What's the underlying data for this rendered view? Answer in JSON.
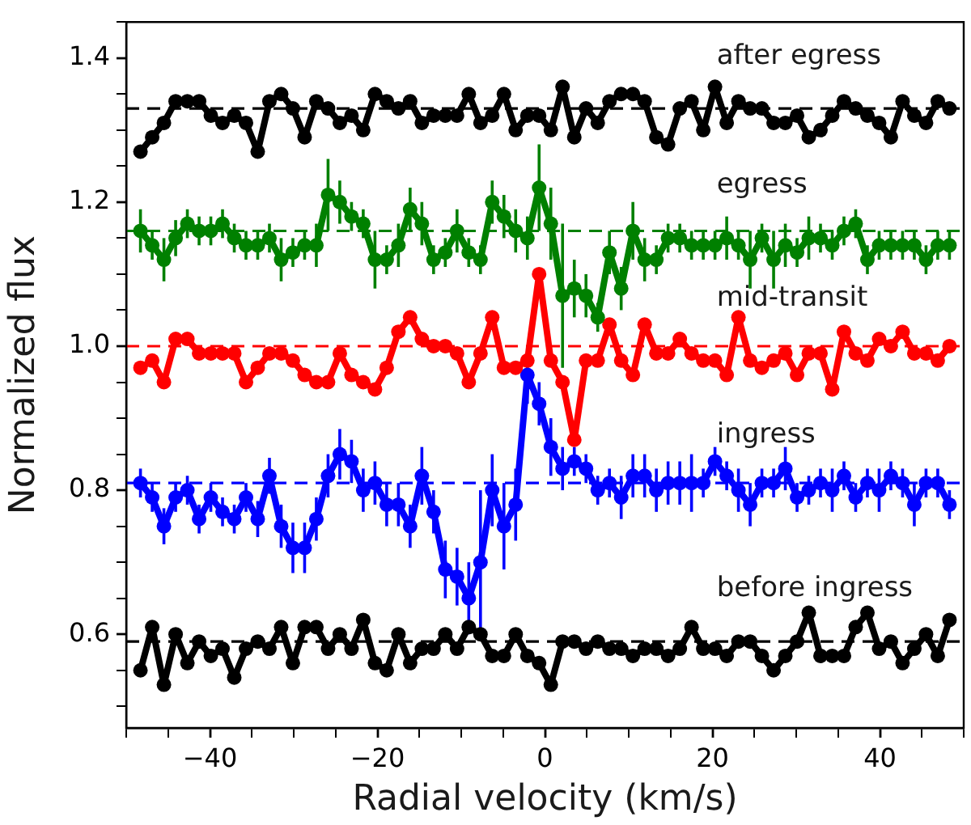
{
  "chart_data": {
    "type": "line",
    "xlabel": "Radial velocity (km/s)",
    "ylabel": "Normalized flux",
    "marker": "circle",
    "line_style": "solid",
    "grid": false,
    "legend": false,
    "x": [
      -48.3,
      -46.9,
      -45.5,
      -44.1,
      -42.7,
      -41.3,
      -39.9,
      -38.5,
      -37.1,
      -35.7,
      -34.3,
      -32.9,
      -31.5,
      -30.1,
      -28.7,
      -27.3,
      -25.9,
      -24.5,
      -23.1,
      -21.7,
      -20.3,
      -18.9,
      -17.5,
      -16.1,
      -14.7,
      -13.3,
      -11.9,
      -10.5,
      -9.1,
      -7.7,
      -6.3,
      -4.9,
      -3.5,
      -2.1,
      -0.7,
      0.7,
      2.1,
      3.5,
      4.9,
      6.3,
      7.7,
      9.1,
      10.5,
      11.9,
      13.3,
      14.7,
      16.1,
      17.5,
      18.9,
      20.3,
      21.7,
      23.1,
      24.5,
      25.9,
      27.3,
      28.7,
      30.1,
      31.5,
      32.9,
      34.3,
      35.7,
      37.1,
      38.5,
      39.9,
      41.3,
      42.7,
      44.1,
      45.5,
      46.9,
      48.3
    ],
    "series": [
      {
        "name": "after egress",
        "color": "#000000",
        "values": [
          1.27,
          1.29,
          1.31,
          1.34,
          1.34,
          1.34,
          1.32,
          1.31,
          1.32,
          1.31,
          1.27,
          1.34,
          1.35,
          1.33,
          1.29,
          1.34,
          1.33,
          1.31,
          1.32,
          1.3,
          1.35,
          1.34,
          1.33,
          1.34,
          1.31,
          1.32,
          1.32,
          1.32,
          1.35,
          1.31,
          1.32,
          1.35,
          1.3,
          1.32,
          1.32,
          1.3,
          1.36,
          1.29,
          1.33,
          1.31,
          1.34,
          1.35,
          1.35,
          1.34,
          1.29,
          1.28,
          1.33,
          1.34,
          1.3,
          1.36,
          1.31,
          1.34,
          1.33,
          1.33,
          1.31,
          1.31,
          1.32,
          1.29,
          1.3,
          1.32,
          1.34,
          1.33,
          1.32,
          1.31,
          1.29,
          1.34,
          1.32,
          1.31,
          1.34,
          1.33
        ]
      },
      {
        "name": "egress",
        "color": "#008000",
        "values": [
          1.16,
          1.14,
          1.12,
          1.15,
          1.17,
          1.16,
          1.16,
          1.17,
          1.15,
          1.14,
          1.14,
          1.15,
          1.12,
          1.13,
          1.14,
          1.14,
          1.21,
          1.2,
          1.18,
          1.17,
          1.12,
          1.12,
          1.14,
          1.19,
          1.17,
          1.12,
          1.13,
          1.16,
          1.13,
          1.12,
          1.2,
          1.18,
          1.16,
          1.15,
          1.22,
          1.17,
          1.07,
          1.08,
          1.07,
          1.04,
          1.13,
          1.08,
          1.16,
          1.12,
          1.12,
          1.15,
          1.15,
          1.14,
          1.14,
          1.14,
          1.15,
          1.14,
          1.12,
          1.15,
          1.12,
          1.14,
          1.13,
          1.15,
          1.15,
          1.14,
          1.16,
          1.17,
          1.12,
          1.14,
          1.14,
          1.14,
          1.14,
          1.12,
          1.14,
          1.14
        ],
        "errors": [
          0.03,
          0.02,
          0.03,
          0.025,
          0.02,
          0.02,
          0.02,
          0.02,
          0.02,
          0.02,
          0.02,
          0.02,
          0.03,
          0.02,
          0.02,
          0.03,
          0.05,
          0.03,
          0.02,
          0.02,
          0.04,
          0.02,
          0.03,
          0.03,
          0.03,
          0.02,
          0.02,
          0.03,
          0.02,
          0.02,
          0.03,
          0.03,
          0.03,
          0.03,
          0.06,
          0.05,
          0.1,
          0.04,
          0.03,
          0.02,
          0.03,
          0.03,
          0.04,
          0.03,
          0.02,
          0.02,
          0.02,
          0.02,
          0.02,
          0.02,
          0.03,
          0.02,
          0.04,
          0.02,
          0.04,
          0.03,
          0.02,
          0.03,
          0.02,
          0.02,
          0.02,
          0.02,
          0.02,
          0.02,
          0.02,
          0.02,
          0.02,
          0.02,
          0.02,
          0.02
        ]
      },
      {
        "name": "mid-transit",
        "color": "#ff0000",
        "values": [
          0.97,
          0.98,
          0.95,
          1.01,
          1.01,
          0.99,
          0.99,
          0.99,
          0.99,
          0.95,
          0.97,
          0.99,
          0.99,
          0.98,
          0.96,
          0.95,
          0.95,
          0.99,
          0.96,
          0.95,
          0.94,
          0.97,
          1.02,
          1.04,
          1.01,
          1.0,
          1.0,
          0.99,
          0.95,
          0.99,
          1.04,
          0.97,
          0.97,
          0.98,
          1.1,
          0.98,
          0.95,
          0.87,
          0.98,
          0.98,
          1.03,
          0.98,
          0.96,
          1.03,
          0.99,
          0.99,
          1.01,
          0.99,
          0.98,
          0.98,
          0.96,
          1.04,
          0.98,
          0.97,
          0.98,
          0.99,
          0.96,
          0.99,
          0.99,
          0.94,
          1.02,
          0.99,
          0.98,
          1.01,
          1.0,
          1.02,
          0.99,
          0.99,
          0.98,
          1.0
        ]
      },
      {
        "name": "ingress",
        "color": "#0000ff",
        "values": [
          0.81,
          0.79,
          0.75,
          0.79,
          0.8,
          0.76,
          0.79,
          0.77,
          0.76,
          0.79,
          0.76,
          0.82,
          0.75,
          0.72,
          0.72,
          0.76,
          0.82,
          0.85,
          0.84,
          0.8,
          0.81,
          0.78,
          0.78,
          0.75,
          0.82,
          0.77,
          0.69,
          0.68,
          0.65,
          0.7,
          0.8,
          0.75,
          0.78,
          0.96,
          0.92,
          0.86,
          0.83,
          0.84,
          0.83,
          0.8,
          0.81,
          0.79,
          0.82,
          0.82,
          0.8,
          0.81,
          0.81,
          0.81,
          0.81,
          0.84,
          0.82,
          0.8,
          0.78,
          0.81,
          0.81,
          0.83,
          0.79,
          0.8,
          0.81,
          0.8,
          0.82,
          0.79,
          0.81,
          0.8,
          0.82,
          0.81,
          0.78,
          0.81,
          0.81,
          0.78
        ],
        "errors": [
          0.02,
          0.02,
          0.025,
          0.02,
          0.02,
          0.02,
          0.02,
          0.02,
          0.02,
          0.02,
          0.025,
          0.025,
          0.03,
          0.035,
          0.035,
          0.03,
          0.03,
          0.035,
          0.03,
          0.03,
          0.03,
          0.03,
          0.03,
          0.03,
          0.04,
          0.03,
          0.04,
          0.04,
          0.05,
          0.1,
          0.05,
          0.06,
          0.05,
          0.04,
          0.03,
          0.04,
          0.03,
          0.02,
          0.02,
          0.02,
          0.02,
          0.03,
          0.03,
          0.03,
          0.03,
          0.03,
          0.03,
          0.04,
          0.02,
          0.02,
          0.02,
          0.03,
          0.03,
          0.02,
          0.02,
          0.03,
          0.02,
          0.02,
          0.02,
          0.03,
          0.02,
          0.02,
          0.02,
          0.03,
          0.02,
          0.02,
          0.03,
          0.02,
          0.02,
          0.02
        ]
      },
      {
        "name": "before ingress",
        "color": "#000000",
        "values": [
          0.55,
          0.61,
          0.53,
          0.6,
          0.56,
          0.59,
          0.57,
          0.58,
          0.54,
          0.58,
          0.59,
          0.58,
          0.61,
          0.56,
          0.61,
          0.61,
          0.58,
          0.6,
          0.58,
          0.62,
          0.56,
          0.55,
          0.6,
          0.56,
          0.58,
          0.58,
          0.6,
          0.58,
          0.61,
          0.6,
          0.57,
          0.57,
          0.6,
          0.57,
          0.56,
          0.53,
          0.59,
          0.59,
          0.58,
          0.59,
          0.58,
          0.58,
          0.57,
          0.58,
          0.58,
          0.57,
          0.58,
          0.61,
          0.58,
          0.58,
          0.57,
          0.59,
          0.59,
          0.57,
          0.55,
          0.57,
          0.59,
          0.63,
          0.57,
          0.57,
          0.57,
          0.61,
          0.63,
          0.58,
          0.59,
          0.56,
          0.58,
          0.6,
          0.57,
          0.62
        ]
      }
    ],
    "ref_lines": [
      {
        "axis": "y",
        "value": 1.33,
        "color": "#000000",
        "line_style": "dashed"
      },
      {
        "axis": "y",
        "value": 1.16,
        "color": "#008000",
        "line_style": "dashed"
      },
      {
        "axis": "y",
        "value": 1.0,
        "color": "#ff0000",
        "line_style": "dashed"
      },
      {
        "axis": "y",
        "value": 0.81,
        "color": "#0000ff",
        "line_style": "dashed"
      },
      {
        "axis": "y",
        "value": 0.59,
        "color": "#000000",
        "line_style": "dashed"
      }
    ],
    "xlim": [
      -50,
      50
    ],
    "xticks": [
      {
        "value": -50,
        "label": null
      },
      {
        "value": -45,
        "label": null
      },
      -40,
      {
        "value": -35,
        "label": null
      },
      {
        "value": -30,
        "label": null
      },
      {
        "value": -25,
        "label": null
      },
      -20,
      {
        "value": -15,
        "label": null
      },
      {
        "value": -10,
        "label": null
      },
      {
        "value": -5,
        "label": null
      },
      0,
      {
        "value": 5,
        "label": null
      },
      {
        "value": 10,
        "label": null
      },
      {
        "value": 15,
        "label": null
      },
      20,
      {
        "value": 25,
        "label": null
      },
      {
        "value": 30,
        "label": null
      },
      {
        "value": 35,
        "label": null
      },
      40,
      {
        "value": 45,
        "label": null
      },
      {
        "value": 50,
        "label": null
      }
    ],
    "ylim": [
      0.47,
      1.45
    ],
    "yticks": [
      {
        "value": 0.5,
        "label": null
      },
      {
        "value": 0.55,
        "label": null
      },
      {
        "value": 0.6,
        "label": "0.6"
      },
      {
        "value": 0.65,
        "label": null
      },
      {
        "value": 0.7,
        "label": null
      },
      {
        "value": 0.75,
        "label": null
      },
      {
        "value": 0.8,
        "label": "0.8"
      },
      {
        "value": 0.85,
        "label": null
      },
      {
        "value": 0.9,
        "label": null
      },
      {
        "value": 0.95,
        "label": null
      },
      {
        "value": 1.0,
        "label": "1.0"
      },
      {
        "value": 1.05,
        "label": null
      },
      {
        "value": 1.1,
        "label": null
      },
      {
        "value": 1.15,
        "label": null
      },
      {
        "value": 1.2,
        "label": "1.2"
      },
      {
        "value": 1.25,
        "label": null
      },
      {
        "value": 1.3,
        "label": null
      },
      {
        "value": 1.35,
        "label": null
      },
      {
        "value": 1.4,
        "label": "1.4"
      },
      {
        "value": 1.45,
        "label": null
      }
    ]
  }
}
